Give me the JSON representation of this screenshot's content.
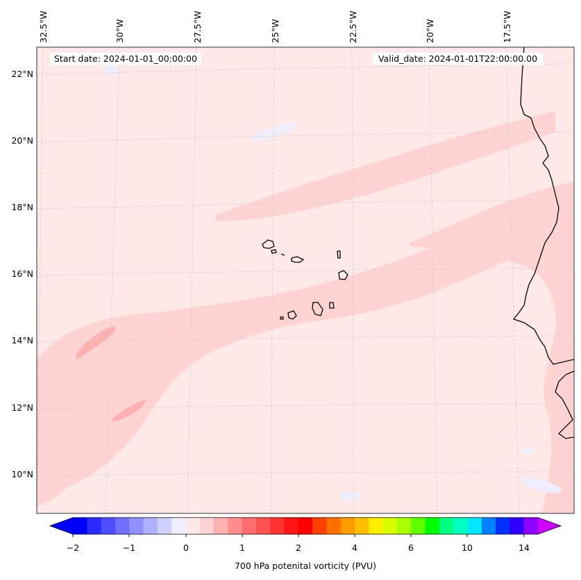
{
  "map": {
    "title_start": "Start date: 2024-01-01_00:00:00",
    "title_valid": "Valid_date: 2024-01-01T22:00:00.00",
    "field": "700 hPa potential vorticity",
    "region": "Cape Verde / West African coast",
    "lon_labels": [
      "32.5°W",
      "30°W",
      "27.5°W",
      "25°W",
      "22.5°W",
      "20°W",
      "17.5°W"
    ],
    "lat_labels": [
      "22°N",
      "20°N",
      "18°N",
      "16°N",
      "14°N",
      "12°N",
      "10°N"
    ],
    "colors": {
      "background_field": "#ffe8e8",
      "band_light": "#ffd3d3",
      "band_medium": "#ffb0b0",
      "negative_light": "#eeeeff",
      "coast": "#000000",
      "grid": "#c8c8c8"
    }
  },
  "colorbar": {
    "label": "700 hPa potenital vorticity (PVU)",
    "ticks": [
      "−2",
      "−1",
      "0",
      "1",
      "2",
      "4",
      "6",
      "10",
      "14"
    ],
    "colors": [
      "#0000ff",
      "#2a2aff",
      "#4d4dff",
      "#7070ff",
      "#9090ff",
      "#b0b0ff",
      "#d0d0ff",
      "#eeeeff",
      "#ffe8e8",
      "#ffd3d3",
      "#ffb0b0",
      "#ff8c8c",
      "#ff6e6e",
      "#ff5050",
      "#ff3232",
      "#ff1414",
      "#ff0000",
      "#ff4000",
      "#ff7000",
      "#ff9a00",
      "#ffc000",
      "#ffee00",
      "#d8ff00",
      "#a8ff00",
      "#60ff00",
      "#00ff00",
      "#00ff80",
      "#00ffc0",
      "#00e8ff",
      "#0080ff",
      "#0030ff",
      "#3000ff",
      "#9000ff"
    ],
    "extend_min_color": "#0000ff",
    "extend_max_color": "#cc00ff"
  }
}
